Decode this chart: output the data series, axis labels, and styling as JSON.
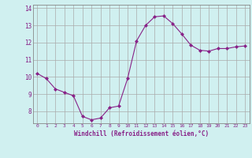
{
  "x": [
    0,
    1,
    2,
    3,
    4,
    5,
    6,
    7,
    8,
    9,
    10,
    11,
    12,
    13,
    14,
    15,
    16,
    17,
    18,
    19,
    20,
    21,
    22,
    23
  ],
  "y": [
    10.2,
    9.9,
    9.3,
    9.1,
    8.9,
    7.7,
    7.5,
    7.6,
    8.2,
    8.3,
    9.9,
    12.1,
    13.0,
    13.5,
    13.55,
    13.1,
    12.5,
    11.85,
    11.55,
    11.5,
    11.65,
    11.65,
    11.75,
    11.8
  ],
  "line_color": "#882288",
  "marker": "D",
  "marker_size": 2.0,
  "bg_color": "#d0f0f0",
  "grid_color": "#aaaaaa",
  "xlabel": "Windchill (Refroidissement éolien,°C)",
  "xlabel_color": "#882288",
  "tick_color": "#882288",
  "ylim": [
    7.3,
    14.2
  ],
  "xlim": [
    -0.5,
    23.5
  ],
  "yticks": [
    8,
    9,
    10,
    11,
    12,
    13,
    14
  ],
  "xticks": [
    0,
    1,
    2,
    3,
    4,
    5,
    6,
    7,
    8,
    9,
    10,
    11,
    12,
    13,
    14,
    15,
    16,
    17,
    18,
    19,
    20,
    21,
    22,
    23
  ]
}
